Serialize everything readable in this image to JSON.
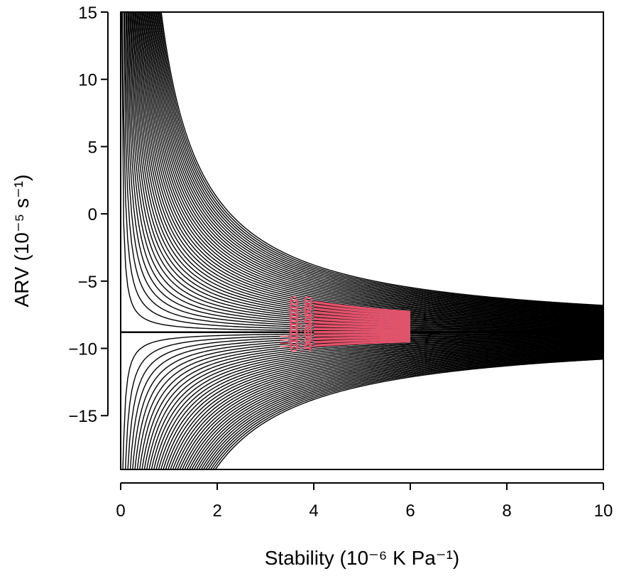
{
  "chart_data": {
    "type": "line",
    "title": "",
    "xlabel": "Stability (10⁻⁶ K Pa⁻¹)",
    "ylabel": "ARV (10⁻⁵ s⁻¹)",
    "xlim": [
      0,
      10
    ],
    "ylim": [
      -19,
      15
    ],
    "x_ticks": [
      0,
      2,
      4,
      6,
      8,
      10
    ],
    "x_tick_labels": [
      "0",
      "2",
      "4",
      "6",
      "8",
      "10"
    ],
    "y_ticks": [
      -15,
      -10,
      -5,
      0,
      5,
      10,
      15
    ],
    "y_tick_labels": [
      "−15",
      "−10",
      "−5",
      "0",
      "5",
      "10",
      "15"
    ],
    "grid": false,
    "relationship": "contours of (ARV + 8.8) x Stability",
    "zero_line_arv": -8.8,
    "black_contour_step": 0.05,
    "black_color": "#000000",
    "highlight_color": "#DF536B",
    "highlight_stability_range": [
      4,
      6
    ],
    "highlight_scale": 10,
    "highlight_contours": [
      {
        "level": 0.9,
        "label": "0.9"
      },
      {
        "level": 0.8,
        "label": "0.8"
      },
      {
        "level": 0.7,
        "label": "0.7"
      },
      {
        "level": 0.6,
        "label": "0.6"
      },
      {
        "level": 0.5,
        "label": "0.5"
      },
      {
        "level": 0.4,
        "label": "0.4"
      },
      {
        "level": 0.3,
        "label": "0.3"
      },
      {
        "level": 0.2,
        "label": "0.2"
      },
      {
        "level": 0.1,
        "label": "0.1"
      },
      {
        "level": 0.0,
        "label": "0.0"
      },
      {
        "level": -0.1,
        "label": "−0.1"
      },
      {
        "level": -0.2,
        "label": "−0.2"
      },
      {
        "level": -0.3,
        "label": "−0.3"
      },
      {
        "level": -0.4,
        "label": "−0.4"
      }
    ]
  }
}
